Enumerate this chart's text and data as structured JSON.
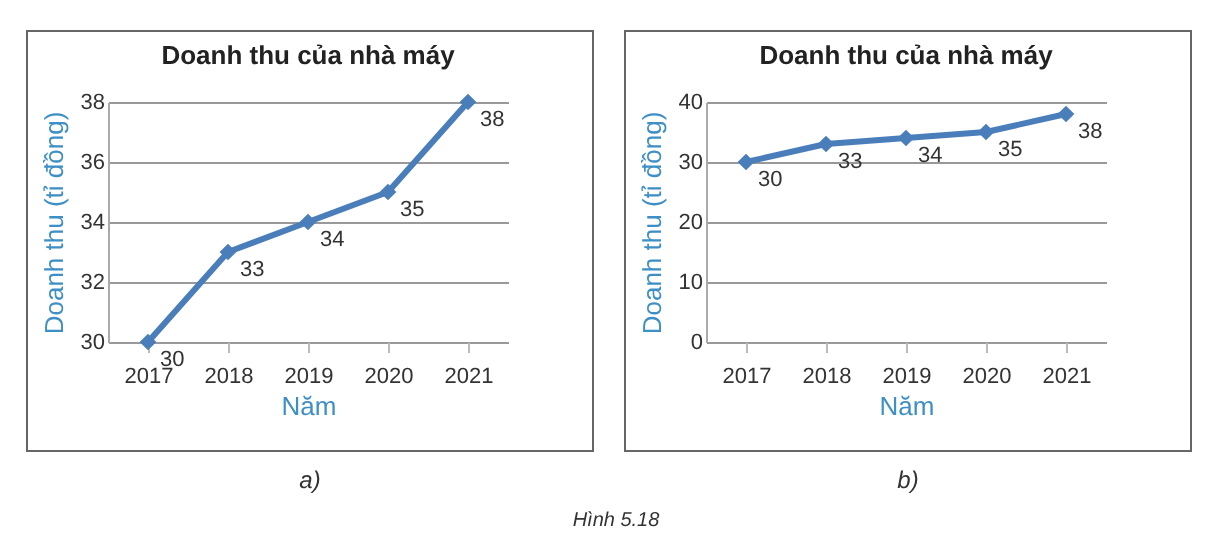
{
  "chart_data": [
    {
      "type": "line",
      "title": "Doanh thu của nhà máy",
      "xlabel": "Năm",
      "ylabel": "Doanh thu (tỉ đồng)",
      "categories": [
        "2017",
        "2018",
        "2019",
        "2020",
        "2021"
      ],
      "series": [
        {
          "color": "#4a7ebb",
          "values": [
            30,
            33,
            34,
            35,
            38
          ]
        }
      ],
      "ylim": [
        30,
        38
      ],
      "yticks": [
        30,
        32,
        34,
        36,
        38
      ],
      "grid": "y",
      "marker": "diamond",
      "data_labels": true,
      "annotations": [
        "a)"
      ]
    },
    {
      "type": "line",
      "title": "Doanh thu của nhà máy",
      "xlabel": "Năm",
      "ylabel": "Doanh thu (tỉ đồng)",
      "categories": [
        "2017",
        "2018",
        "2019",
        "2020",
        "2021"
      ],
      "series": [
        {
          "color": "#4a7ebb",
          "values": [
            30,
            33,
            34,
            35,
            38
          ]
        }
      ],
      "ylim": [
        0,
        40
      ],
      "yticks": [
        0,
        10,
        20,
        30,
        40
      ],
      "grid": "y",
      "marker": "diamond",
      "data_labels": true,
      "annotations": [
        "b)",
        "Hình 5.18"
      ]
    }
  ]
}
